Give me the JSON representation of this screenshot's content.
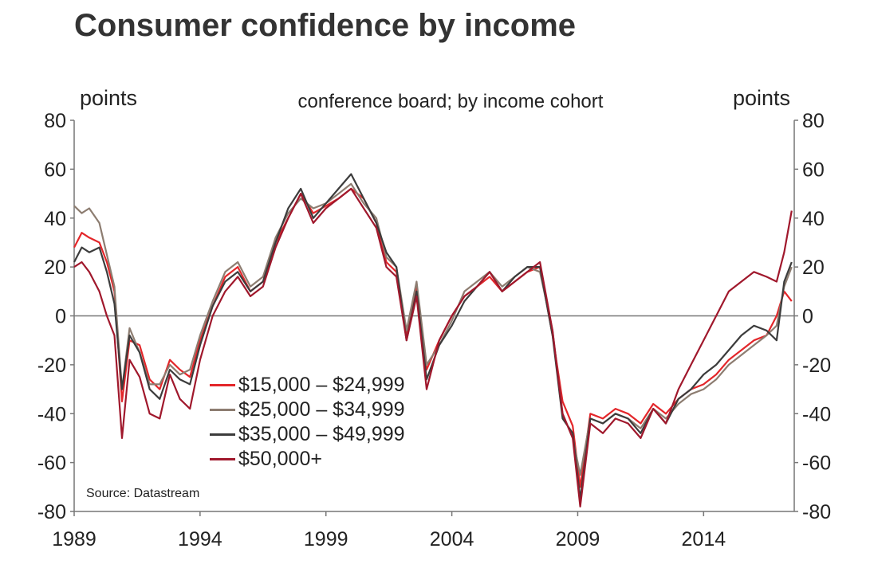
{
  "chart_data": {
    "type": "line",
    "title": "Consumer confidence by income",
    "subtitle": "conference board; by income cohort",
    "ylabel_left": "points",
    "ylabel_right": "points",
    "source": "Source: Datastream",
    "ylim": [
      -80,
      80
    ],
    "yticks": [
      -80,
      -60,
      -40,
      -20,
      0,
      20,
      40,
      60,
      80
    ],
    "xlim": [
      1989.0,
      2017.6
    ],
    "xticks": [
      1989,
      1994,
      1999,
      2004,
      2009,
      2014
    ],
    "legend_position": "lower-left inside",
    "series": [
      {
        "name": "$15,000 – $24,999",
        "color": "#e3262a",
        "x": [
          1989.0,
          1989.3,
          1989.6,
          1990.0,
          1990.3,
          1990.6,
          1990.9,
          1991.2,
          1991.6,
          1992.0,
          1992.4,
          1992.8,
          1993.2,
          1993.6,
          1994.0,
          1994.5,
          1995.0,
          1995.5,
          1996.0,
          1996.5,
          1997.0,
          1997.5,
          1998.0,
          1998.5,
          1999.0,
          1999.5,
          2000.0,
          2000.5,
          2001.0,
          2001.4,
          2001.8,
          2002.2,
          2002.6,
          2003.0,
          2003.5,
          2004.0,
          2004.5,
          2005.0,
          2005.5,
          2006.0,
          2006.5,
          2007.0,
          2007.5,
          2008.0,
          2008.4,
          2008.8,
          2009.1,
          2009.5,
          2010.0,
          2010.5,
          2011.0,
          2011.5,
          2012.0,
          2012.5,
          2013.0,
          2013.5,
          2014.0,
          2014.5,
          2015.0,
          2015.5,
          2016.0,
          2016.5,
          2016.9,
          2017.2,
          2017.5
        ],
        "values": [
          28,
          34,
          32,
          30,
          22,
          10,
          -35,
          -10,
          -12,
          -26,
          -30,
          -18,
          -22,
          -25,
          -10,
          4,
          16,
          20,
          10,
          14,
          30,
          40,
          50,
          42,
          45,
          48,
          52,
          48,
          38,
          22,
          18,
          -8,
          12,
          -22,
          -10,
          0,
          8,
          12,
          16,
          10,
          14,
          18,
          20,
          -8,
          -35,
          -45,
          -70,
          -40,
          -42,
          -38,
          -40,
          -44,
          -36,
          -40,
          -34,
          -30,
          -28,
          -24,
          -18,
          -14,
          -10,
          -8,
          0,
          10,
          6
        ]
      },
      {
        "name": "$25,000 – $34,999",
        "color": "#8d7d71",
        "x": [
          1989.0,
          1989.3,
          1989.6,
          1990.0,
          1990.3,
          1990.6,
          1990.9,
          1991.2,
          1991.6,
          1992.0,
          1992.4,
          1992.8,
          1993.2,
          1993.6,
          1994.0,
          1994.5,
          1995.0,
          1995.5,
          1996.0,
          1996.5,
          1997.0,
          1997.5,
          1998.0,
          1998.5,
          1999.0,
          1999.5,
          2000.0,
          2000.5,
          2001.0,
          2001.4,
          2001.8,
          2002.2,
          2002.6,
          2003.0,
          2003.5,
          2004.0,
          2004.5,
          2005.0,
          2005.5,
          2006.0,
          2006.5,
          2007.0,
          2007.5,
          2008.0,
          2008.4,
          2008.8,
          2009.1,
          2009.5,
          2010.0,
          2010.5,
          2011.0,
          2011.5,
          2012.0,
          2012.5,
          2013.0,
          2013.5,
          2014.0,
          2014.5,
          2015.0,
          2015.5,
          2016.0,
          2016.5,
          2016.9,
          2017.2,
          2017.5
        ],
        "values": [
          45,
          42,
          44,
          38,
          25,
          12,
          -30,
          -5,
          -15,
          -28,
          -28,
          -20,
          -24,
          -22,
          -8,
          6,
          18,
          22,
          12,
          16,
          32,
          42,
          48,
          44,
          46,
          50,
          54,
          46,
          40,
          24,
          20,
          -6,
          14,
          -20,
          -12,
          -2,
          10,
          14,
          18,
          12,
          16,
          20,
          18,
          -6,
          -40,
          -50,
          -65,
          -42,
          -44,
          -40,
          -42,
          -46,
          -38,
          -42,
          -36,
          -32,
          -30,
          -26,
          -20,
          -16,
          -12,
          -8,
          -4,
          12,
          20
        ]
      },
      {
        "name": "$35,000 – $49,999",
        "color": "#3c3c3c",
        "x": [
          1989.0,
          1989.3,
          1989.6,
          1990.0,
          1990.3,
          1990.6,
          1990.9,
          1991.2,
          1991.6,
          1992.0,
          1992.4,
          1992.8,
          1993.2,
          1993.6,
          1994.0,
          1994.5,
          1995.0,
          1995.5,
          1996.0,
          1996.5,
          1997.0,
          1997.5,
          1998.0,
          1998.5,
          1999.0,
          1999.5,
          2000.0,
          2000.5,
          2001.0,
          2001.4,
          2001.8,
          2002.2,
          2002.6,
          2003.0,
          2003.5,
          2004.0,
          2004.5,
          2005.0,
          2005.5,
          2006.0,
          2006.5,
          2007.0,
          2007.5,
          2008.0,
          2008.4,
          2008.8,
          2009.1,
          2009.5,
          2010.0,
          2010.5,
          2011.0,
          2011.5,
          2012.0,
          2012.5,
          2013.0,
          2013.5,
          2014.0,
          2014.5,
          2015.0,
          2015.5,
          2016.0,
          2016.5,
          2016.9,
          2017.2,
          2017.5
        ],
        "values": [
          22,
          28,
          26,
          28,
          18,
          5,
          -30,
          -8,
          -15,
          -30,
          -34,
          -22,
          -26,
          -28,
          -12,
          4,
          14,
          18,
          10,
          14,
          30,
          44,
          52,
          40,
          46,
          52,
          58,
          48,
          38,
          26,
          20,
          -10,
          10,
          -26,
          -12,
          -4,
          6,
          12,
          18,
          10,
          16,
          20,
          20,
          -8,
          -42,
          -48,
          -75,
          -42,
          -44,
          -40,
          -42,
          -48,
          -38,
          -44,
          -34,
          -30,
          -24,
          -20,
          -14,
          -8,
          -4,
          -6,
          -10,
          14,
          22
        ]
      },
      {
        "name": "$50,000+",
        "color": "#a0182c",
        "x": [
          1989.0,
          1989.3,
          1989.6,
          1990.0,
          1990.3,
          1990.6,
          1990.9,
          1991.2,
          1991.6,
          1992.0,
          1992.4,
          1992.8,
          1993.2,
          1993.6,
          1994.0,
          1994.5,
          1995.0,
          1995.5,
          1996.0,
          1996.5,
          1997.0,
          1997.5,
          1998.0,
          1998.5,
          1999.0,
          1999.5,
          2000.0,
          2000.5,
          2001.0,
          2001.4,
          2001.8,
          2002.2,
          2002.6,
          2003.0,
          2003.5,
          2004.0,
          2004.5,
          2005.0,
          2005.5,
          2006.0,
          2006.5,
          2007.0,
          2007.5,
          2008.0,
          2008.4,
          2008.8,
          2009.1,
          2009.5,
          2010.0,
          2010.5,
          2011.0,
          2011.5,
          2012.0,
          2012.5,
          2013.0,
          2013.5,
          2014.0,
          2014.5,
          2015.0,
          2015.5,
          2016.0,
          2016.5,
          2016.9,
          2017.2,
          2017.5
        ],
        "values": [
          20,
          22,
          18,
          10,
          0,
          -8,
          -50,
          -18,
          -25,
          -40,
          -42,
          -24,
          -34,
          -38,
          -18,
          0,
          10,
          16,
          8,
          12,
          28,
          40,
          50,
          38,
          44,
          48,
          52,
          44,
          36,
          20,
          16,
          -10,
          8,
          -30,
          -10,
          0,
          8,
          12,
          18,
          10,
          14,
          18,
          22,
          -6,
          -40,
          -50,
          -78,
          -44,
          -48,
          -42,
          -44,
          -50,
          -38,
          -44,
          -30,
          -20,
          -10,
          0,
          10,
          14,
          18,
          16,
          14,
          26,
          43
        ]
      }
    ]
  }
}
